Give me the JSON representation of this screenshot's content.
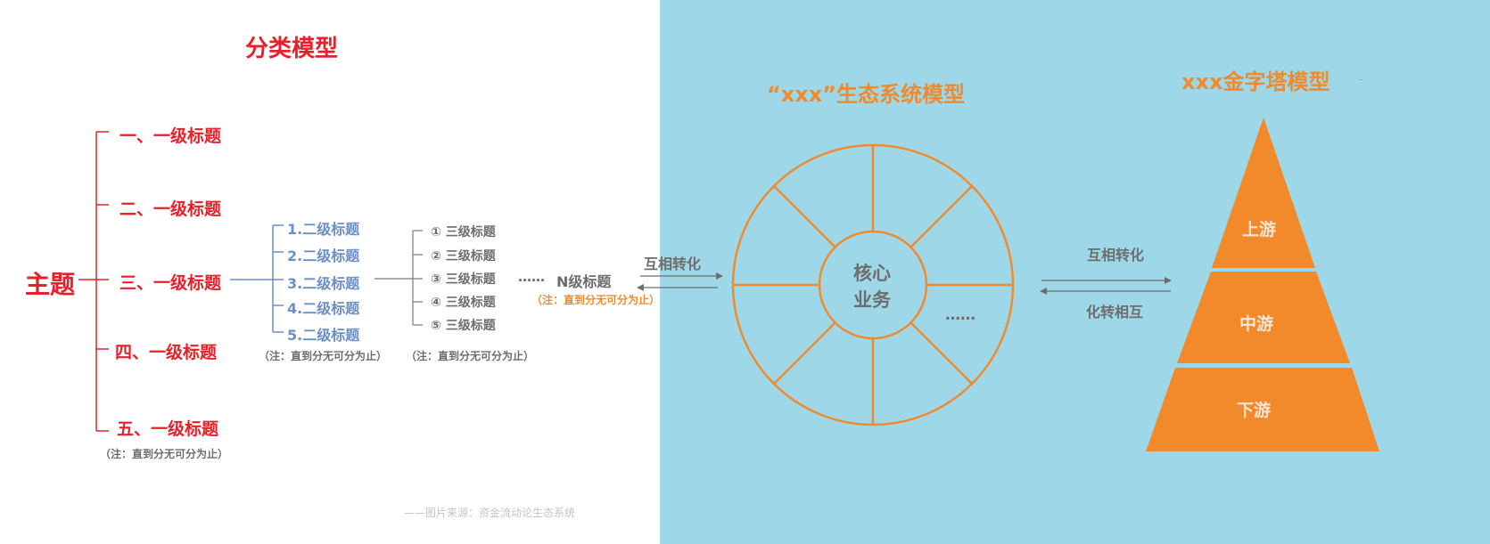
{
  "classification": {
    "title": "分类模型",
    "topic": "主题",
    "level1": [
      "一、一级标题",
      "二、一级标题",
      "三、一级标题",
      "四、一级标题",
      "五、一级标题"
    ],
    "level1_note": "（注：直到分无可分为止）",
    "level2": [
      "1.二级标题",
      "2.二级标题",
      "3.二级标题",
      "4.二级标题",
      "5.二级标题"
    ],
    "level2_note": "（注：直到分无可分为止）",
    "level3": [
      "① 三级标题",
      "② 三级标题",
      "③ 三级标题",
      "④ 三级标题",
      "⑤ 三级标题"
    ],
    "level3_note": "（注：直到分无可分为止）",
    "ellipsis": "……",
    "levelN": "N级标题",
    "levelN_note": "（注：直到分无可分为止）"
  },
  "source": "——图片来源：资金流动论生态系统",
  "mutual_left": "互相转化",
  "ecosystem": {
    "title": "“xxx”生态系统模型",
    "core_line1": "核心",
    "core_line2": "业务",
    "ellipsis": "……"
  },
  "arrows_right": {
    "top": "互相转化",
    "bottom": "化转相互"
  },
  "pyramid": {
    "title": "xxx金字塔模型",
    "dot": "-",
    "levels": [
      "上游",
      "中游",
      "下游"
    ]
  },
  "colors": {
    "red": "#e8202a",
    "blue": "#6b8fc7",
    "orange": "#f08a2e",
    "gray": "#6d6d6d",
    "panel": "#9ed8e8"
  }
}
